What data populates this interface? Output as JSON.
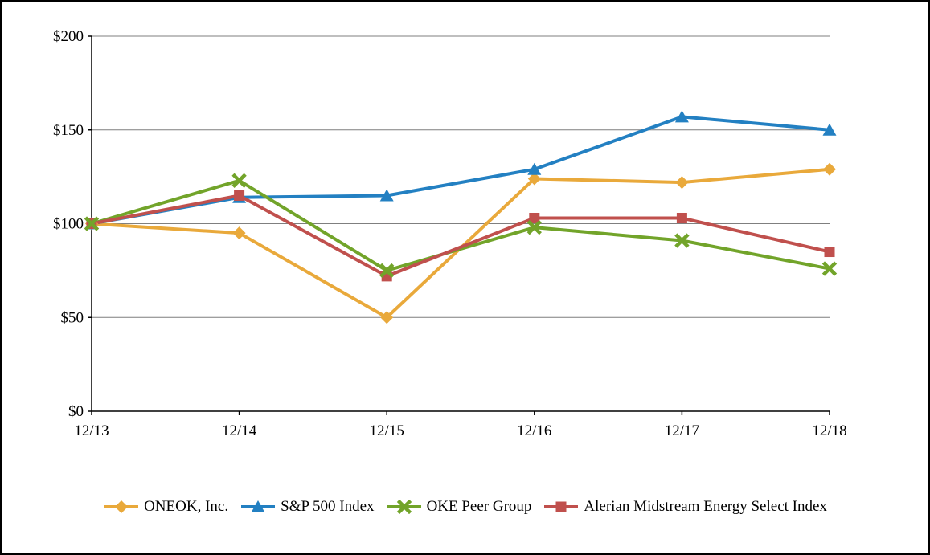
{
  "chart_data": {
    "type": "line",
    "title": "",
    "categories": [
      "12/13",
      "12/14",
      "12/15",
      "12/16",
      "12/17",
      "12/18"
    ],
    "series": [
      {
        "name": "ONEOK, Inc.",
        "marker": "diamond",
        "color": "#E9A93B",
        "values": [
          100,
          95,
          50,
          124,
          122,
          129
        ]
      },
      {
        "name": "S&P 500 Index",
        "marker": "triangle",
        "color": "#2380C2",
        "values": [
          100,
          114,
          115,
          129,
          157,
          150
        ]
      },
      {
        "name": "OKE Peer Group",
        "marker": "x",
        "color": "#72A42A",
        "values": [
          100,
          123,
          75,
          98,
          91,
          76
        ]
      },
      {
        "name": "Alerian Midstream Energy Select Index",
        "marker": "square",
        "color": "#C0504D",
        "values": [
          100,
          115,
          72,
          103,
          103,
          85
        ]
      }
    ],
    "xlabel": "",
    "ylabel": "",
    "ylim": [
      0,
      200
    ],
    "ytick_interval": 50,
    "ytick_labels": [
      "$0",
      "$50",
      "$100",
      "$150",
      "$200"
    ],
    "grid": true,
    "legend_position": "bottom",
    "marker_draw_order": [
      0,
      1,
      3,
      2
    ]
  },
  "colors": {
    "background": "#FFFFFF",
    "border": "#000000",
    "gridline": "#7F7F7F",
    "axis": "#000000",
    "text": "#000000"
  }
}
